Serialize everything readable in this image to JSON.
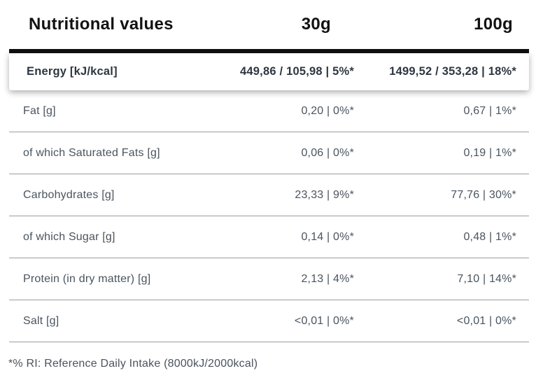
{
  "header": {
    "title": "Nutritional values",
    "serving_small": "30g",
    "serving_large": "100g"
  },
  "rows": [
    {
      "label": "Energy [kJ/kcal]",
      "per_30g": "449,86 / 105,98 | 5%*",
      "per_100g": "1499,52 / 353,28 | 18%*"
    },
    {
      "label": "Fat [g]",
      "per_30g": "0,20 | 0%*",
      "per_100g": "0,67 | 1%*"
    },
    {
      "label": "of which Saturated Fats [g]",
      "per_30g": "0,06 | 0%*",
      "per_100g": "0,19 | 1%*"
    },
    {
      "label": "Carbohydrates [g]",
      "per_30g": "23,33 | 9%*",
      "per_100g": "77,76 | 30%*"
    },
    {
      "label": "of which Sugar [g]",
      "per_30g": "0,14 | 0%*",
      "per_100g": "0,48 | 1%*"
    },
    {
      "label": "Protein (in dry matter) [g]",
      "per_30g": "2,13 | 4%*",
      "per_100g": "7,10 | 14%*"
    },
    {
      "label": "Salt [g]",
      "per_30g": "<0,01 | 0%*",
      "per_100g": "<0,01 | 0%*"
    }
  ],
  "footnote": "*% RI: Reference Daily Intake (8000kJ/2000kcal)",
  "colors": {
    "background": "#ffffff",
    "header_text": "#121212",
    "divider_bar": "#0f0f0f",
    "energy_text": "#2e3741",
    "row_text": "#4a545e",
    "row_divider": "#9b9b9b"
  }
}
